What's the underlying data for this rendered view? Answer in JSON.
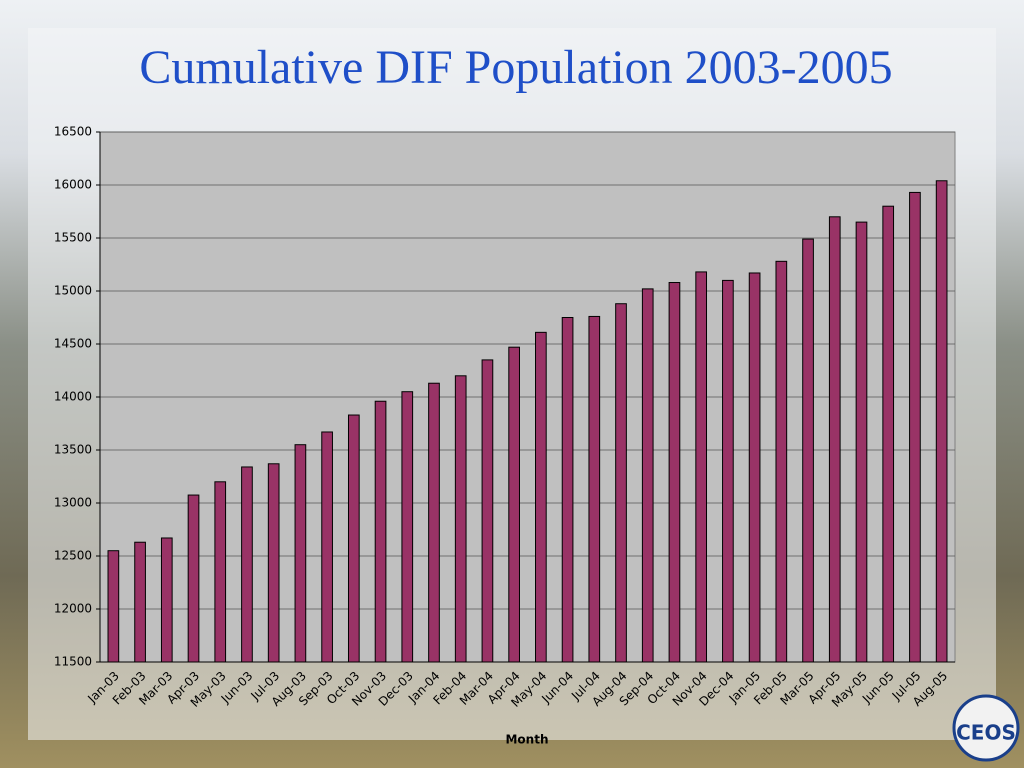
{
  "chart_data": {
    "type": "bar",
    "title": "Cumulative DIF Population 2003-2005",
    "x_label": "Month",
    "logo_text": "CEOS",
    "categories": [
      "Jan-03",
      "Feb-03",
      "Mar-03",
      "Apr-03",
      "May-03",
      "Jun-03",
      "Jul-03",
      "Aug-03",
      "Sep-03",
      "Oct-03",
      "Nov-03",
      "Dec-03",
      "Jan-04",
      "Feb-04",
      "Mar-04",
      "Apr-04",
      "May-04",
      "Jun-04",
      "Jul-04",
      "Aug-04",
      "Sep-04",
      "Oct-04",
      "Nov-04",
      "Dec-04",
      "Jan-05",
      "Feb-05",
      "Mar-05",
      "Apr-05",
      "May-05",
      "Jun-05",
      "Jul-05",
      "Aug-05"
    ],
    "values": [
      12550,
      12630,
      12670,
      13075,
      13200,
      13340,
      13370,
      13550,
      13670,
      13830,
      13960,
      14050,
      14130,
      14200,
      14350,
      14470,
      14610,
      14750,
      14760,
      14880,
      15020,
      15080,
      15180,
      15100,
      15170,
      15280,
      15490,
      15700,
      15650,
      15800,
      15930,
      16040
    ],
    "color": "#993366",
    "ylim": [
      11500,
      16500
    ],
    "yticks": [
      11500,
      12000,
      12500,
      13000,
      13500,
      14000,
      14500,
      15000,
      15500,
      16000,
      16500
    ],
    "grid": true
  }
}
